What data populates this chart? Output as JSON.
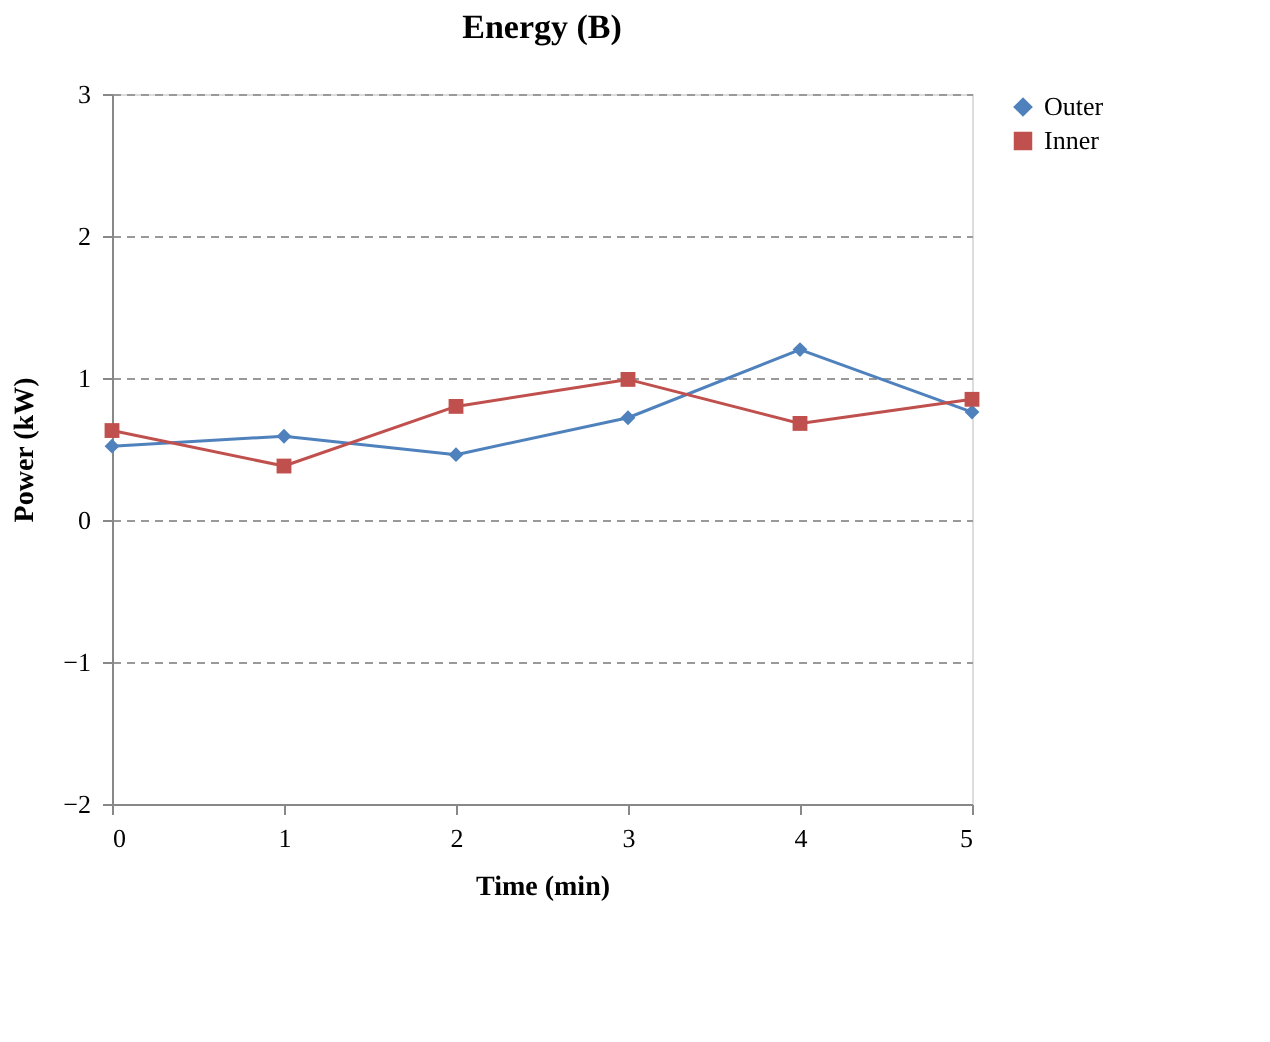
{
  "chart_data": {
    "type": "line",
    "title": "Energy (B)",
    "xlabel": "Time (min)",
    "ylabel": "Power (kW)",
    "x": [
      0,
      1,
      2,
      3,
      4,
      5
    ],
    "series": [
      {
        "name": "Outer",
        "color": "#4f81bd",
        "marker": "diamond",
        "values": [
          0.52,
          0.59,
          0.46,
          0.72,
          1.2,
          0.76
        ]
      },
      {
        "name": "Inner",
        "color": "#c0504d",
        "marker": "square",
        "values": [
          0.63,
          0.38,
          0.8,
          0.99,
          0.68,
          0.85
        ]
      }
    ],
    "xlim": [
      0,
      5
    ],
    "xticks": [
      0,
      1,
      2,
      3,
      4,
      5
    ],
    "ylim": [
      -2,
      3
    ],
    "yticks": [
      -2,
      -1,
      0,
      1,
      2,
      3
    ],
    "grid": "y",
    "legend": "right",
    "line_style": "solid"
  }
}
